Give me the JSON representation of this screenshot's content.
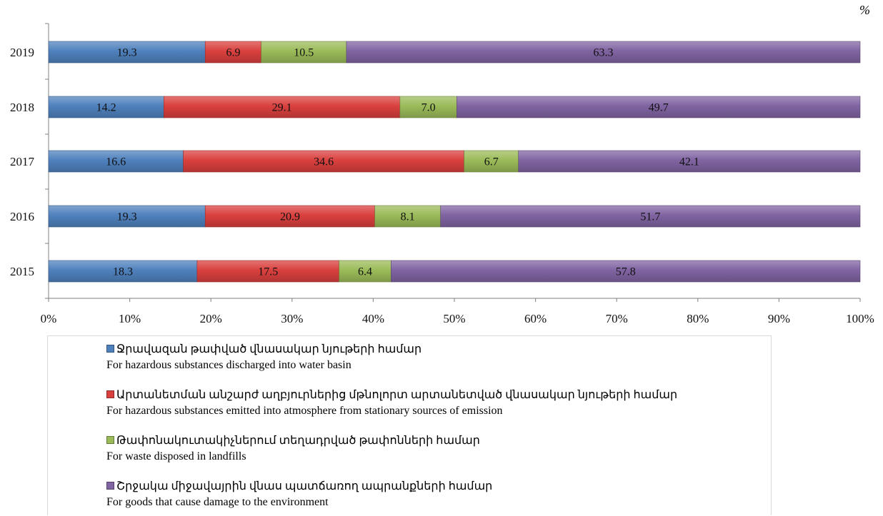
{
  "chart_data": {
    "type": "bar",
    "orientation": "horizontal",
    "stacked": "percent",
    "unit": "%",
    "categories": [
      "2019",
      "2018",
      "2017",
      "2016",
      "2015"
    ],
    "series": [
      {
        "name": "Ջրավազան թափված վնասակար նյութերի համար / For hazardous substances discharged into water basin",
        "color": "#4f81bd",
        "values": [
          19.3,
          14.2,
          16.6,
          19.3,
          18.3
        ]
      },
      {
        "name": "Արտանետման անշարժ աղբյուրներից մթնոլորտ արտանետված վնասակար նյութերի համար / For hazardous substances emitted into atmosphere from stationary sources of emission",
        "color": "#d9403e",
        "values": [
          6.9,
          29.1,
          34.6,
          20.9,
          17.5
        ]
      },
      {
        "name": "Թափոնակուտակիչներում տեղադրված թափոնների համար / For waste disposed in landfills",
        "color": "#9bbb59",
        "values": [
          10.5,
          7.0,
          6.7,
          8.1,
          6.4
        ]
      },
      {
        "name": "Շրջակա միջավայրին վնաս պատճառող ապրանքների համար / For goods that cause damage to the environment",
        "color": "#8064a2",
        "values": [
          63.3,
          49.7,
          42.1,
          51.7,
          57.8
        ]
      }
    ],
    "data_labels": [
      [
        "19.3",
        "6.9",
        "10.5",
        "63.3"
      ],
      [
        "14.2",
        "29.1",
        "7.0",
        "49.7"
      ],
      [
        "16.6",
        "34.6",
        "6.7",
        "42.1"
      ],
      [
        "19.3",
        "20.9",
        "8.1",
        "51.7"
      ],
      [
        "18.3",
        "17.5",
        "6.4",
        "57.8"
      ]
    ],
    "x_ticks": [
      "0%",
      "10%",
      "20%",
      "30%",
      "40%",
      "50%",
      "60%",
      "70%",
      "80%",
      "90%",
      "100%"
    ],
    "xlim": [
      0,
      100
    ],
    "legend_position": "bottom",
    "grid": false
  },
  "legend": [
    {
      "label_am": "Ջրավազան թափված վնասակար նյութերի համար",
      "label_en": "For hazardous substances discharged into water basin",
      "color": "#4f81bd"
    },
    {
      "label_am": "Արտանետման անշարժ աղբյուրներից մթնոլորտ արտանետված վնասակար նյութերի համար",
      "label_en": "For hazardous substances emitted into atmosphere from stationary sources of emission",
      "color": "#d9403e"
    },
    {
      "label_am": "Թափոնակուտակիչներում տեղադրված թափոնների համար",
      "label_en": "For waste disposed in landfills",
      "color": "#9bbb59"
    },
    {
      "label_am": "Շրջակա միջավայրին վնաս պատճառող ապրանքների համար",
      "label_en": "For goods that cause damage to the environment",
      "color": "#8064a2"
    }
  ]
}
